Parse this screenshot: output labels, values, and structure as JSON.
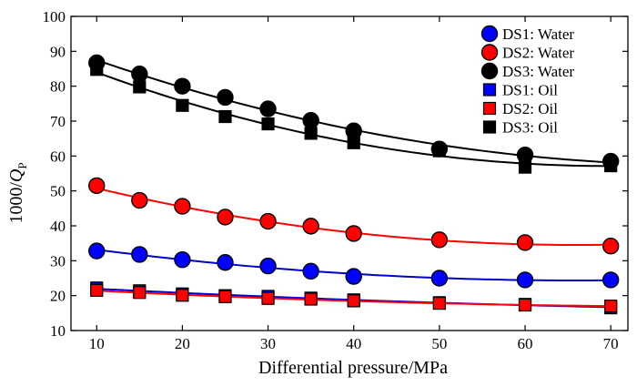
{
  "chart_data": {
    "type": "scatter",
    "title": "",
    "xlabel": "Differential pressure/MPa",
    "ylabel_main": "1000/",
    "ylabel_q": "Q",
    "ylabel_sub": "P",
    "xlim": [
      7,
      72
    ],
    "ylim": [
      10,
      100
    ],
    "xticks": [
      10,
      20,
      30,
      40,
      50,
      60,
      70
    ],
    "yticks": [
      10,
      20,
      30,
      40,
      50,
      60,
      70,
      80,
      90,
      100
    ],
    "grid": false,
    "legend_position": "top-right",
    "x": [
      10,
      15,
      20,
      25,
      30,
      35,
      40,
      50,
      60,
      70
    ],
    "series": [
      {
        "name": "DS1: Water",
        "marker": "circle",
        "color": "#0000ff",
        "line_color": "#0000cc",
        "values": [
          32.8,
          31.8,
          30.3,
          29.5,
          28.5,
          27.0,
          25.5,
          25.0,
          24.5,
          24.5
        ]
      },
      {
        "name": "DS2: Water",
        "marker": "circle",
        "color": "#ff0000",
        "line_color": "#ff0000",
        "values": [
          51.5,
          47.3,
          45.6,
          42.5,
          41.3,
          39.9,
          37.8,
          36.0,
          35.2,
          34.2
        ]
      },
      {
        "name": "DS3: Water",
        "marker": "circle",
        "color": "#000000",
        "line_color": "#000000",
        "values": [
          86.7,
          83.5,
          80.0,
          76.8,
          73.5,
          70.2,
          67.2,
          62.0,
          60.3,
          58.5
        ]
      },
      {
        "name": "DS1: Oil",
        "marker": "square",
        "color": "#0000ff",
        "line_color": "#0000cc",
        "values": [
          22.2,
          21.4,
          20.5,
          20.0,
          19.8,
          19.3,
          18.8,
          18.0,
          17.5,
          16.5
        ]
      },
      {
        "name": "DS2: Oil",
        "marker": "square",
        "color": "#ff0000",
        "line_color": "#ff0000",
        "values": [
          21.5,
          20.9,
          20.1,
          19.7,
          19.2,
          19.0,
          18.5,
          17.8,
          17.3,
          17.0
        ]
      },
      {
        "name": "DS3: Oil",
        "marker": "square",
        "color": "#000000",
        "line_color": "#000000",
        "values": [
          84.8,
          79.8,
          74.5,
          71.3,
          69.2,
          66.5,
          63.8,
          61.5,
          56.8,
          57.2
        ]
      }
    ]
  }
}
